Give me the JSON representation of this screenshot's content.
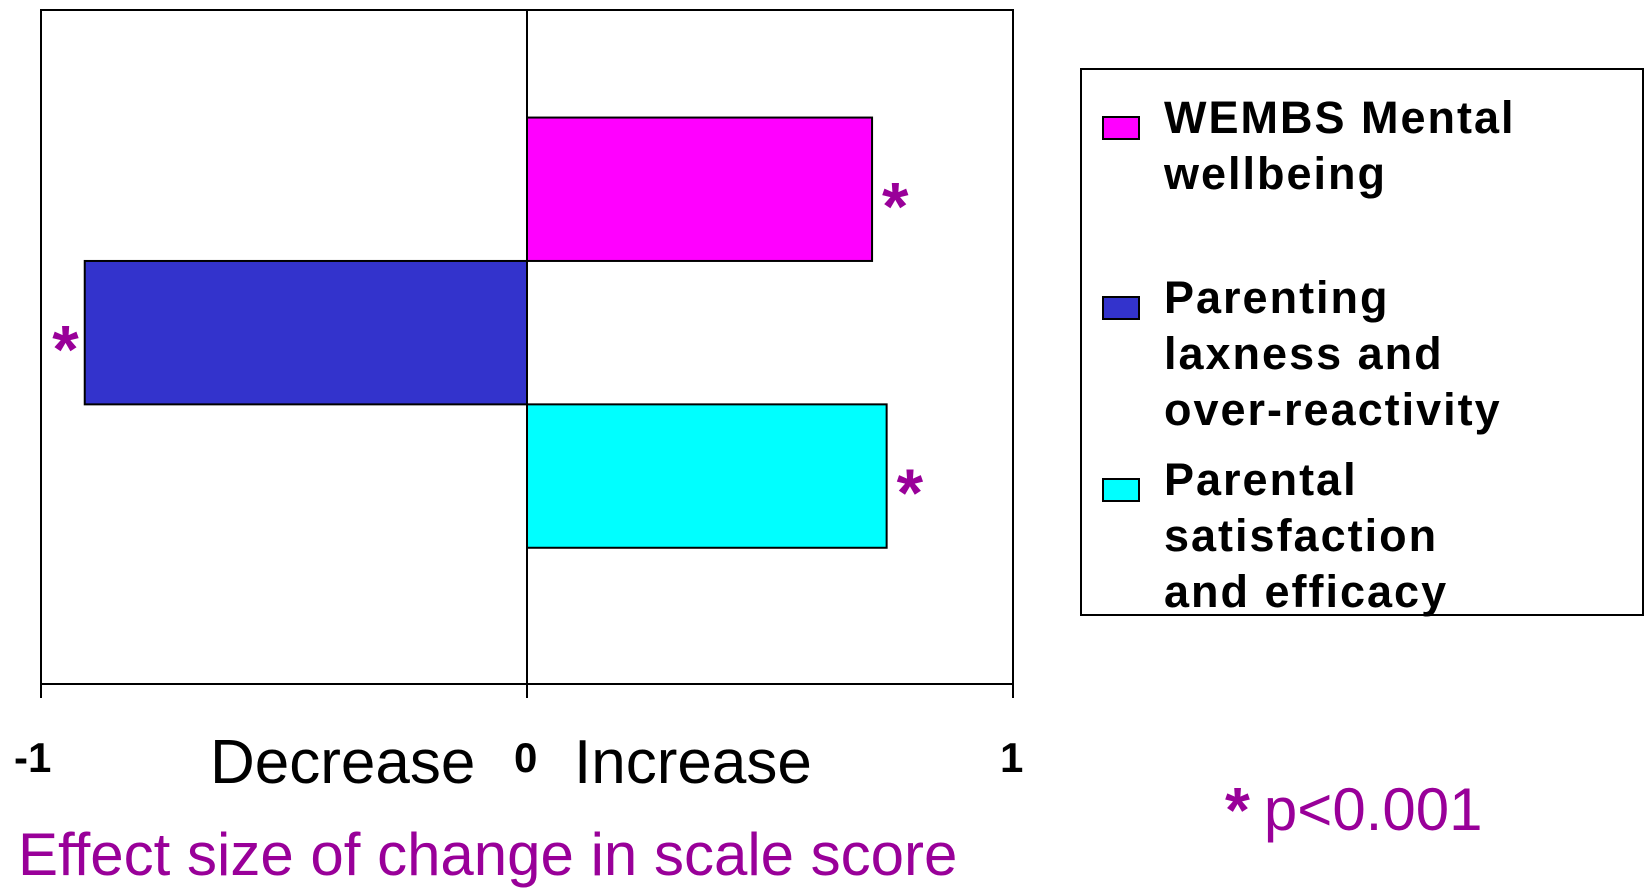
{
  "chart_data": {
    "type": "bar",
    "orientation": "horizontal",
    "xlim": [
      -1,
      1
    ],
    "categories": [
      "WEMBS Mental wellbeing",
      "Parenting laxness and over-reactivity",
      "Parental satisfaction and efficacy"
    ],
    "series": [
      {
        "name": "WEMBS Mental wellbeing",
        "value": 0.71,
        "color": "#ff00ff",
        "significant": true
      },
      {
        "name": "Parenting laxness and over-reactivity",
        "value": -0.91,
        "color": "#3333cc",
        "significant": true
      },
      {
        "name": "Parental satisfaction and efficacy",
        "value": 0.74,
        "color": "#00ffff",
        "significant": true
      }
    ],
    "legend_lines": [
      [
        "WEMBS Mental",
        "wellbeing"
      ],
      [
        "Parenting",
        "laxness and",
        "over-reactivity"
      ],
      [
        "Parental",
        "satisfaction",
        "and efficacy"
      ]
    ],
    "tick_labels": [
      "-1",
      "0",
      "1"
    ],
    "direction_labels": {
      "decrease": "Decrease",
      "increase": "Increase"
    },
    "xlabel": "Effect size of change in scale score",
    "significance_marker": "*",
    "significance_note": "p<0.001",
    "legend_placement": "right",
    "grid": false
  },
  "colors": {
    "accent": "#990099",
    "axis": "#000000"
  }
}
